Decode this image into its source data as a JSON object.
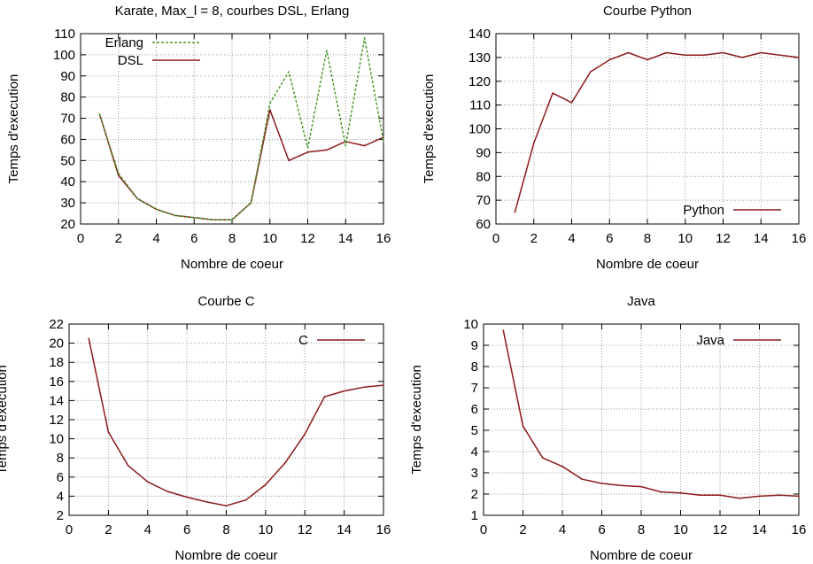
{
  "chart_data": [
    {
      "type": "line",
      "title": "Karate, Max_l = 8, courbes DSL, Erlang",
      "xlabel": "Nombre de coeur",
      "ylabel": "Temps d'execution",
      "xlim": [
        0,
        16
      ],
      "ylim": [
        20,
        110
      ],
      "xticks": [
        0,
        2,
        4,
        6,
        8,
        10,
        12,
        14,
        16
      ],
      "yticks": [
        20,
        30,
        40,
        50,
        60,
        70,
        80,
        90,
        100,
        110
      ],
      "grid": true,
      "legend": "top-left",
      "series": [
        {
          "name": "DSL",
          "color": "#8b1a1a",
          "dash": "solid",
          "x": [
            1,
            2,
            3,
            4,
            5,
            6,
            7,
            8,
            9,
            10,
            11,
            12,
            13,
            14,
            15,
            16
          ],
          "values": [
            72,
            43,
            32,
            27,
            24,
            23,
            22,
            22,
            30,
            74,
            50,
            54,
            55,
            59,
            57,
            61
          ]
        },
        {
          "name": "Erlang",
          "color": "#4b9a2c",
          "dash": "dotted",
          "x": [
            1,
            2,
            3,
            4,
            5,
            6,
            7,
            8,
            9,
            10,
            11,
            12,
            13,
            14,
            15,
            16
          ],
          "values": [
            72,
            44,
            32,
            27,
            24,
            23,
            22,
            22,
            30,
            77,
            92,
            56,
            102,
            57,
            108,
            59
          ]
        }
      ]
    },
    {
      "type": "line",
      "title": "Courbe Python",
      "xlabel": "Nombre de coeur",
      "ylabel": "Temps d'execution",
      "xlim": [
        0,
        16
      ],
      "ylim": [
        60,
        140
      ],
      "xticks": [
        0,
        2,
        4,
        6,
        8,
        10,
        12,
        14,
        16
      ],
      "yticks": [
        60,
        70,
        80,
        90,
        100,
        110,
        120,
        130,
        140
      ],
      "grid": true,
      "legend": "bottom-right",
      "series": [
        {
          "name": "Python",
          "color": "#8b1a1a",
          "dash": "solid",
          "x": [
            1,
            2,
            3,
            4,
            5,
            6,
            7,
            8,
            9,
            10,
            11,
            12,
            13,
            14,
            15,
            16
          ],
          "values": [
            65,
            94,
            115,
            111,
            124,
            129,
            132,
            129,
            132,
            131,
            131,
            132,
            130,
            132,
            131,
            130
          ]
        }
      ]
    },
    {
      "type": "line",
      "title": "Courbe C",
      "xlabel": "Nombre de coeur",
      "ylabel": "Temps d'execution",
      "xlim": [
        0,
        16
      ],
      "ylim": [
        2,
        22
      ],
      "xticks": [
        0,
        2,
        4,
        6,
        8,
        10,
        12,
        14,
        16
      ],
      "yticks": [
        2,
        4,
        6,
        8,
        10,
        12,
        14,
        16,
        18,
        20,
        22
      ],
      "grid": true,
      "legend": "top-right",
      "series": [
        {
          "name": "C",
          "color": "#8b1a1a",
          "dash": "solid",
          "x": [
            1,
            2,
            3,
            4,
            5,
            6,
            7,
            8,
            9,
            10,
            11,
            12,
            13,
            14,
            15,
            16
          ],
          "values": [
            20.5,
            10.7,
            7.2,
            5.5,
            4.5,
            3.9,
            3.4,
            3.0,
            3.6,
            5.2,
            7.5,
            10.5,
            14.4,
            15.0,
            15.4,
            15.6
          ]
        }
      ]
    },
    {
      "type": "line",
      "title": "Java",
      "xlabel": "Nombre de coeur",
      "ylabel": "Temps d'execution",
      "xlim": [
        0,
        16
      ],
      "ylim": [
        1,
        10
      ],
      "xticks": [
        0,
        2,
        4,
        6,
        8,
        10,
        12,
        14,
        16
      ],
      "yticks": [
        1,
        2,
        3,
        4,
        5,
        6,
        7,
        8,
        9,
        10
      ],
      "grid": true,
      "legend": "top-right",
      "series": [
        {
          "name": "Java",
          "color": "#8b1a1a",
          "dash": "solid",
          "x": [
            1,
            2,
            3,
            4,
            5,
            6,
            7,
            8,
            9,
            10,
            11,
            12,
            13,
            14,
            15,
            16
          ],
          "values": [
            9.7,
            5.2,
            3.7,
            3.3,
            2.7,
            2.5,
            2.4,
            2.35,
            2.1,
            2.05,
            1.95,
            1.95,
            1.8,
            1.9,
            1.95,
            1.9
          ]
        }
      ]
    }
  ]
}
